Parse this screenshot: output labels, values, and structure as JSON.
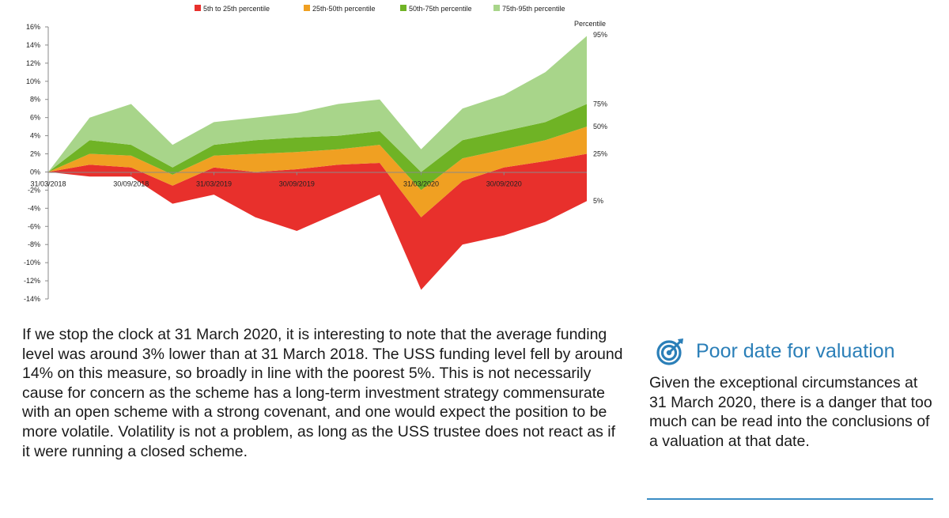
{
  "chart_data": {
    "type": "area",
    "title": "",
    "legend": {
      "placement": "top",
      "entries": [
        {
          "label": "5th to 25th percentile",
          "color": "#e8302c"
        },
        {
          "label": "25th-50th percentile",
          "color": "#f0a022"
        },
        {
          "label": "50th-75th percentile",
          "color": "#6fb325"
        },
        {
          "label": "75th-95th percentile",
          "color": "#a8d58a"
        }
      ]
    },
    "ylim": [
      -14,
      16
    ],
    "y_ticks": [
      "16%",
      "14%",
      "12%",
      "10%",
      "8%",
      "6%",
      "4%",
      "2%",
      "0%",
      "-2%",
      "-4%",
      "-6%",
      "-8%",
      "-10%",
      "-12%",
      "-14%"
    ],
    "y_tick_values": [
      16,
      14,
      12,
      10,
      8,
      6,
      4,
      2,
      0,
      -2,
      -4,
      -6,
      -8,
      -10,
      -12,
      -14
    ],
    "x_tick_labels": [
      "31/03/2018",
      "30/09/2018",
      "31/03/2019",
      "30/09/2019",
      "31/03/2020",
      "30/09/2020"
    ],
    "x": [
      "31/03/2018",
      "30/06/2018",
      "30/09/2018",
      "31/12/2018",
      "31/03/2019",
      "30/06/2019",
      "30/09/2019",
      "31/12/2019",
      "28/02/2020",
      "31/03/2020",
      "30/06/2020",
      "30/09/2020",
      "31/12/2020",
      "31/03/2021"
    ],
    "series": [
      {
        "name": "5th to 25th percentile",
        "percentile": "5%",
        "values": [
          0,
          -0.5,
          -0.5,
          -3.5,
          -2.5,
          -5,
          -6.5,
          -4.5,
          -2.5,
          -13,
          -8,
          -7,
          -5.5,
          -3.2
        ]
      },
      {
        "name": "25th-50th percentile",
        "percentile": "25%",
        "values": [
          0,
          0.8,
          0.5,
          -1.5,
          0.5,
          0,
          0.3,
          0.8,
          1,
          -5,
          -1,
          0.5,
          1.2,
          2
        ]
      },
      {
        "name": "50th-75th percentile",
        "percentile": "50%",
        "values": [
          0,
          2,
          1.8,
          -0.3,
          1.8,
          2,
          2.2,
          2.5,
          3,
          -2,
          1.5,
          2.5,
          3.5,
          5
        ]
      },
      {
        "name": "75th-95th percentile",
        "percentile": "75%",
        "values": [
          0,
          3.5,
          3,
          0.5,
          3,
          3.5,
          3.8,
          4,
          4.5,
          0,
          3.5,
          4.5,
          5.5,
          7.5
        ]
      },
      {
        "name": "95th percentile",
        "percentile": "95%",
        "values": [
          0,
          6,
          7.5,
          3,
          5.5,
          6,
          6.5,
          7.5,
          8,
          2.5,
          7,
          8.5,
          11,
          15
        ]
      }
    ],
    "right_labels": {
      "title": "Percentile",
      "items": [
        "95%",
        "75%",
        "50%",
        "25%",
        "5%"
      ]
    },
    "grid": false
  },
  "article": {
    "body": "If we stop the clock at 31 March 2020, it is interesting to note that the average funding level was around 3% lower than at 31 March 2018. The USS funding level fell by around 14% on this measure, so broadly in line with the poorest 5%. This is not necessarily cause for concern as the scheme has a long-term investment strategy commensurate with an open scheme with a strong covenant, and one would expect the position to be more volatile. Volatility is not a problem, as long as the USS trustee does not react as if it were running a closed scheme."
  },
  "sidebar": {
    "icon": "target-icon",
    "title": "Poor date for valuation",
    "text": "Given the exceptional circumstances at 31 March 2020, there is a danger that too much can be read into the conclusions of a valuation at that date.",
    "accent_color": "#2b7fb8"
  }
}
